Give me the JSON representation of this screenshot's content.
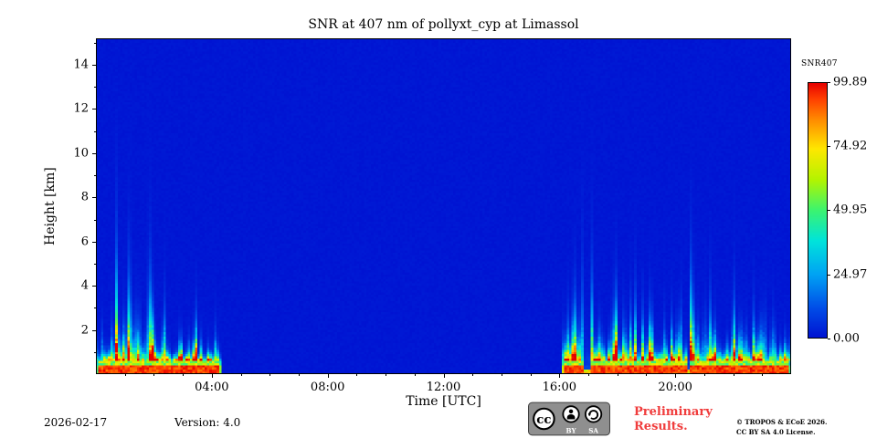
{
  "title": "SNR at 407 nm of pollyxt_cyp at Limassol",
  "axes": {
    "xlabel": "Time [UTC]",
    "ylabel": "Height [km]",
    "xticks": [
      {
        "h": 4,
        "label": "04:00"
      },
      {
        "h": 8,
        "label": "08:00"
      },
      {
        "h": 12,
        "label": "12:00"
      },
      {
        "h": 16,
        "label": "16:00"
      },
      {
        "h": 20,
        "label": "20:00"
      }
    ],
    "yticks": [
      {
        "km": 2,
        "label": "2"
      },
      {
        "km": 4,
        "label": "4"
      },
      {
        "km": 6,
        "label": "6"
      },
      {
        "km": 8,
        "label": "8"
      },
      {
        "km": 10,
        "label": "10"
      },
      {
        "km": 12,
        "label": "12"
      },
      {
        "km": 14,
        "label": "14"
      }
    ]
  },
  "colorbar": {
    "label": "SNR407",
    "ticks": [
      "99.89",
      "74.92",
      "49.95",
      "24.97",
      "0.00"
    ],
    "tick_values": [
      99.89,
      74.92,
      49.95,
      24.97,
      0.0
    ]
  },
  "footer": {
    "date": "2026-02-17",
    "version": "Version: 4.0",
    "preliminary": "Preliminary Results.",
    "copyright1": "© TROPOS & ECoE 2026.",
    "copyright2": "CC BY SA 4.0 License."
  },
  "license_badge": {
    "cc": "cc",
    "by": "BY",
    "sa": "SA"
  },
  "colors": {
    "preliminary_red": "#f03c3c",
    "background_blue": "#0013d2",
    "frame_black": "#000000"
  },
  "chart_data": {
    "type": "heatmap",
    "title": "SNR at 407 nm of pollyxt_cyp at Limassol",
    "xlabel": "Time [UTC]",
    "ylabel": "Height [km]",
    "x_unit": "hours_utc",
    "y_unit": "km",
    "xlim": [
      0,
      24
    ],
    "ylim": [
      0,
      15.2
    ],
    "vmin": 0,
    "vmax": 99.89,
    "background_value": 0,
    "description": "Deep-blue background (SNR~0) at all heights during daylight (~04:20-16:00 UTC). During the two night periods a strong surface signal layer (SNR>90, red) lies below ~0.4 km with a yellow-green halo up to ~1 km and vertical green/cyan noise streaks reaching 2-5 km.",
    "signal_periods": [
      {
        "start": 0.0,
        "end": 4.35,
        "surface_snr": 95,
        "layer_top_km": 0.45,
        "streak_max_km": 3.5
      },
      {
        "start": 16.05,
        "end": 24.0,
        "surface_snr": 95,
        "layer_top_km": 0.45,
        "streak_max_km": 4.5
      }
    ],
    "gaps": [
      {
        "start": 16.82,
        "end": 17.08
      },
      {
        "start": 20.42,
        "end": 20.52
      }
    ],
    "bursts": [
      {
        "start": 0.6,
        "end": 1.9,
        "boost": 1.5
      },
      {
        "start": 2.6,
        "end": 4.35,
        "boost": 0.55
      },
      {
        "start": 16.05,
        "end": 16.8,
        "boost": 1.9
      },
      {
        "start": 20.55,
        "end": 20.85,
        "boost": 2.4
      }
    ],
    "colormap_stops": [
      [
        0.0,
        "#0013d2"
      ],
      [
        0.12,
        "#004fe8"
      ],
      [
        0.25,
        "#00a4f4"
      ],
      [
        0.38,
        "#00e4dc"
      ],
      [
        0.5,
        "#3cf470"
      ],
      [
        0.62,
        "#b4f400"
      ],
      [
        0.74,
        "#ffe800"
      ],
      [
        0.85,
        "#ff9000"
      ],
      [
        0.94,
        "#ff3c00"
      ],
      [
        1.0,
        "#e60000"
      ]
    ]
  }
}
